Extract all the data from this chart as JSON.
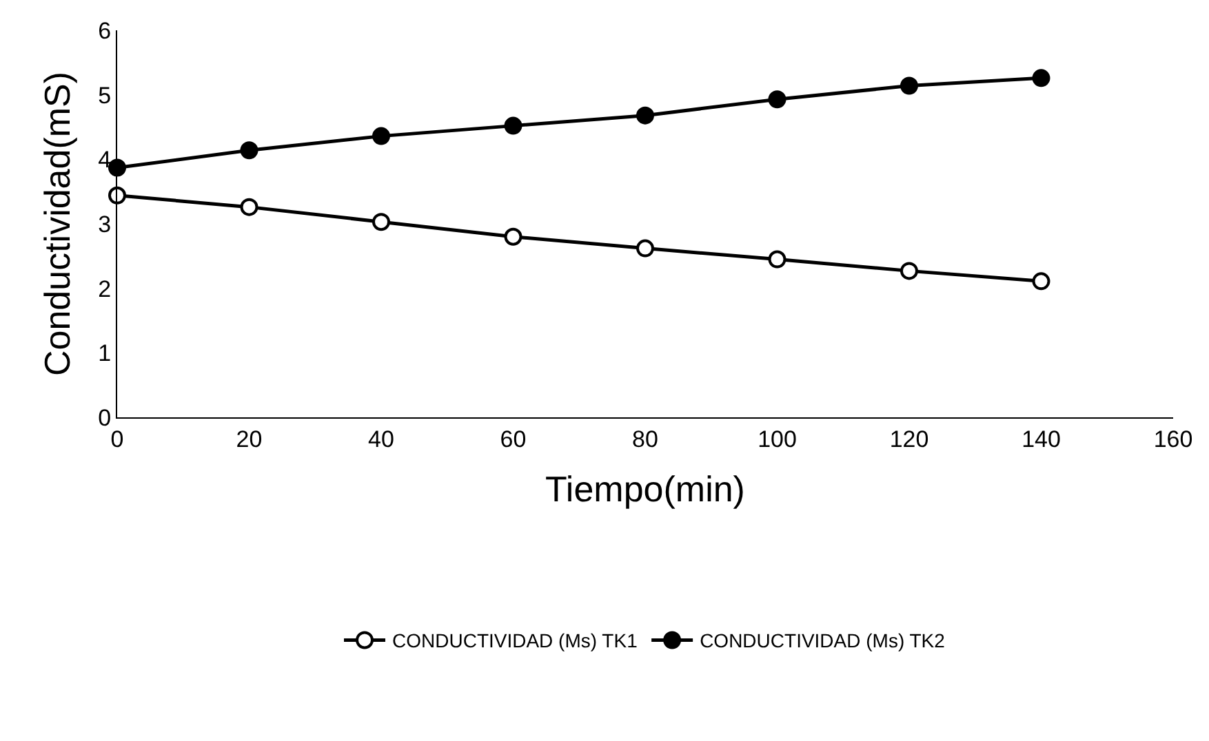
{
  "chart_data": {
    "type": "line",
    "xlabel": "Tiempo(min)",
    "ylabel": "Conductividad(mS)",
    "x": [
      0,
      20,
      40,
      60,
      80,
      100,
      120,
      140
    ],
    "series": [
      {
        "name": "CONDUCTIVIDAD (Ms) TK1",
        "color": "#000000",
        "values": [
          3.44,
          3.26,
          3.03,
          2.8,
          2.62,
          2.45,
          2.27,
          2.11
        ]
      },
      {
        "name": "CONDUCTIVIDAD (Ms) TK2",
        "color": "#000000",
        "values": [
          3.87,
          4.14,
          4.36,
          4.52,
          4.68,
          4.93,
          5.14,
          5.26
        ]
      }
    ],
    "xlim": [
      0,
      160
    ],
    "xticks": [
      0,
      20,
      40,
      60,
      80,
      100,
      120,
      140,
      160
    ],
    "ylim": [
      0,
      6
    ],
    "yticks": [
      0,
      1,
      2,
      3,
      4,
      5,
      6
    ],
    "grid": false,
    "legend": "bottom",
    "marker": "circle",
    "line_style": "solid"
  }
}
